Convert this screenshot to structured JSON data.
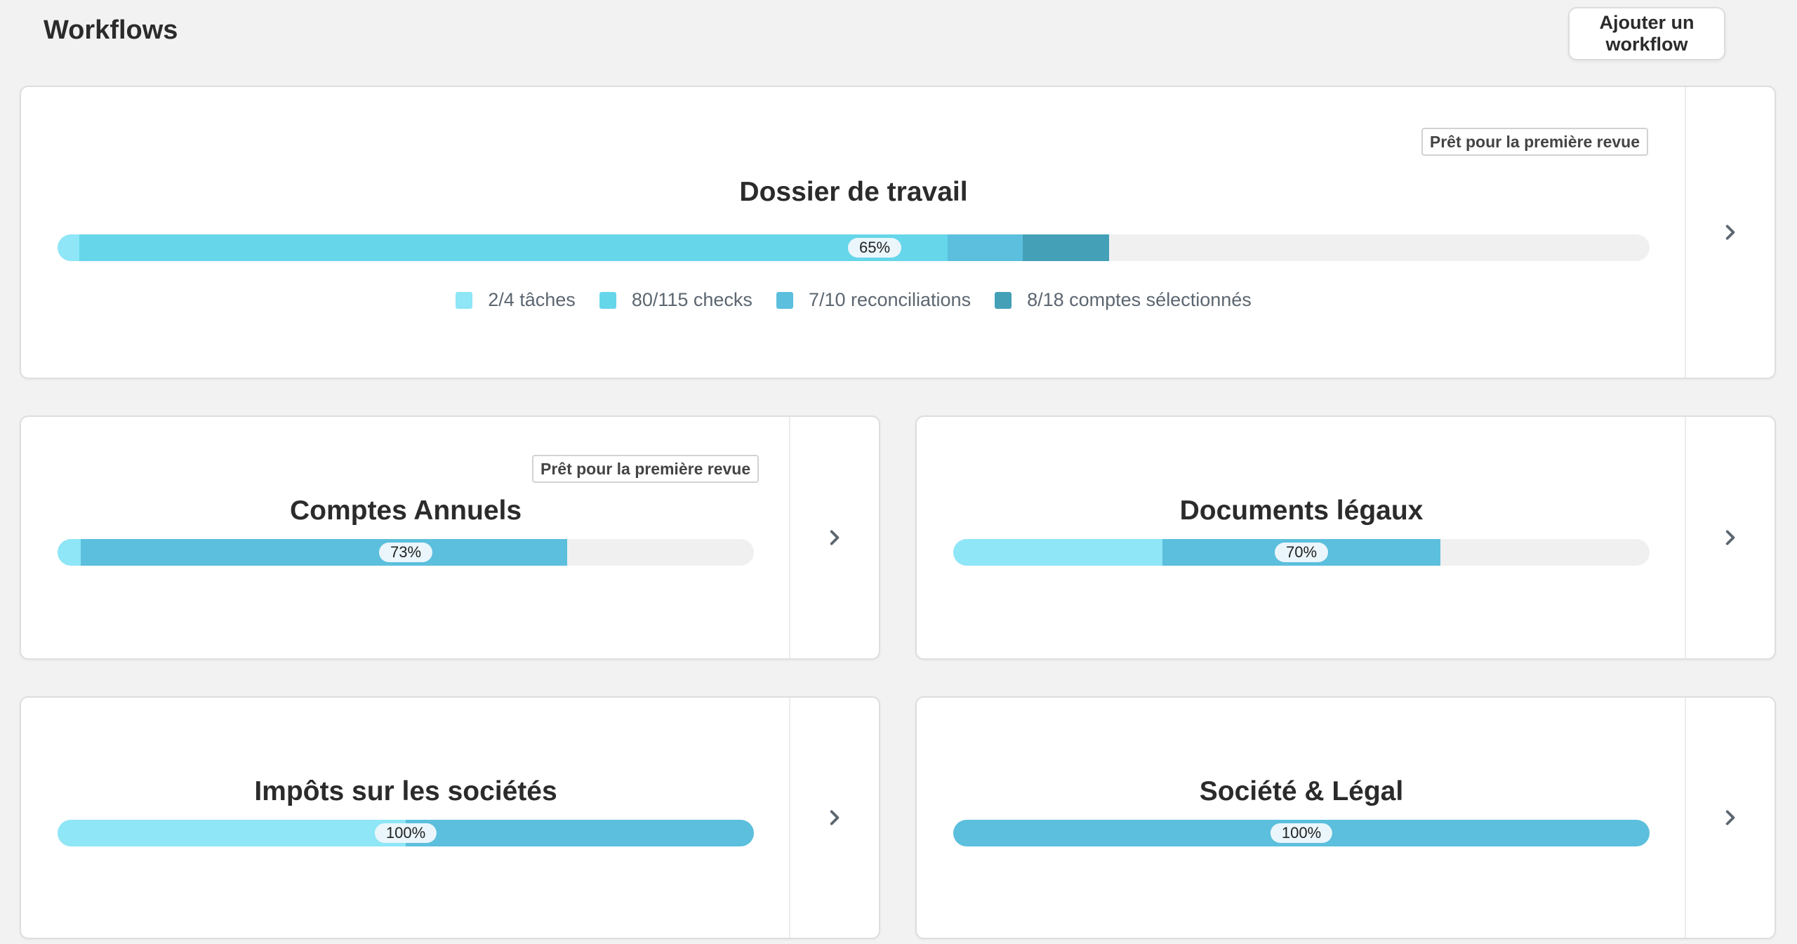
{
  "page": {
    "title": "Workflows",
    "add_button": "Ajouter un workflow"
  },
  "colors": {
    "light": "#8ee6f6",
    "checks": "#66d6ea",
    "medium": "#5bbfdd",
    "dark": "#43a0b6",
    "track": "#f0f0f0",
    "pct_bg": "#eaf6fb"
  },
  "cards": {
    "dossier": {
      "title": "Dossier de travail",
      "badge": "Prêt pour la première revue",
      "progress_label": "65%",
      "progress": 0.65,
      "legend": [
        {
          "label": "2/4 tâches",
          "color": "#8ee6f6"
        },
        {
          "label": "80/115 checks",
          "color": "#66d6ea"
        },
        {
          "label": "7/10 reconciliations",
          "color": "#5bbfdd"
        },
        {
          "label": "8/18 comptes sélectionnés",
          "color": "#43a0b6"
        }
      ]
    },
    "comptes": {
      "title": "Comptes Annuels",
      "badge": "Prêt pour la première revue",
      "progress_label": "73%",
      "progress": 0.73
    },
    "documents": {
      "title": "Documents légaux",
      "progress_label": "70%",
      "progress": 0.7
    },
    "impots": {
      "title": "Impôts sur les sociétés",
      "progress_label": "100%",
      "progress": 1.0
    },
    "societe": {
      "title": "Société & Légal",
      "progress_label": "100%",
      "progress": 1.0
    }
  },
  "icons": {
    "card_nav": "chevron-right-icon",
    "legend": "square-swatch"
  }
}
